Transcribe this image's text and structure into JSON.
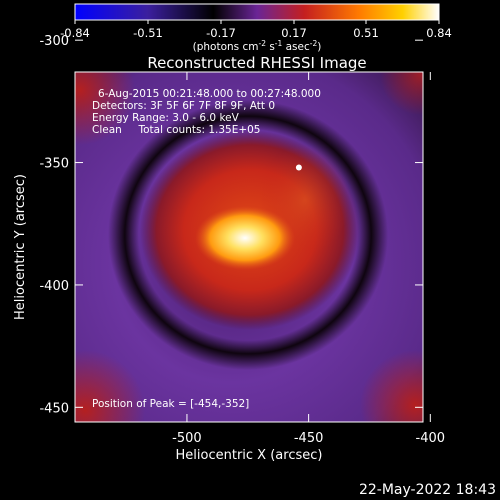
{
  "colorbar": {
    "tick_labels": [
      "-0.84",
      "-0.51",
      "-0.17",
      "0.17",
      "0.51",
      "0.84"
    ],
    "units_text": "(photons cm",
    "units_sup1": "-2",
    "units_mid": " s",
    "units_sup2": "-1",
    "units_tail": " asec",
    "units_sup3": "-2",
    "units_close": ")",
    "colormap_stops": [
      "#0000ff",
      "#3b1f9e",
      "#000000",
      "#6a2596",
      "#c41f1f",
      "#ff7a00",
      "#ffd000",
      "#ffffff"
    ]
  },
  "image": {
    "title": "Reconstructed RHESSI Image",
    "annotation_lines": [
      "6-Aug-2015 00:21:48.000 to 00:27:48.000",
      "Detectors: 3F 5F 6F 7F 8F 9F, Att 0",
      "Energy Range: 3.0 - 6.0 keV",
      "Clean     Total counts: 1.35E+05"
    ],
    "peak_text": "Position of Peak = [-454,-352]",
    "x_axis_label": "Heliocentric X (arcsec)",
    "y_axis_label": "Heliocentric Y (arcsec)",
    "x_tick_labels": [
      "-500",
      "-450",
      "-400"
    ],
    "y_tick_labels": [
      "-300",
      "-350",
      "-400",
      "-450"
    ],
    "x_ticks": [
      -500,
      -450,
      -400
    ],
    "y_ticks": [
      -300,
      -350,
      -400,
      -450
    ],
    "xlim": [
      -546,
      -403
    ],
    "ylim": [
      -456,
      -313
    ],
    "peak_position": [
      -454,
      -352
    ],
    "colors": {
      "halo": "#7b3ca6",
      "dark_ring": "#0a0208",
      "source": "#d23a16",
      "core": "#ffe060",
      "peak": "#ffffff"
    }
  },
  "footer": {
    "timestamp": "22-May-2022 18:43"
  }
}
